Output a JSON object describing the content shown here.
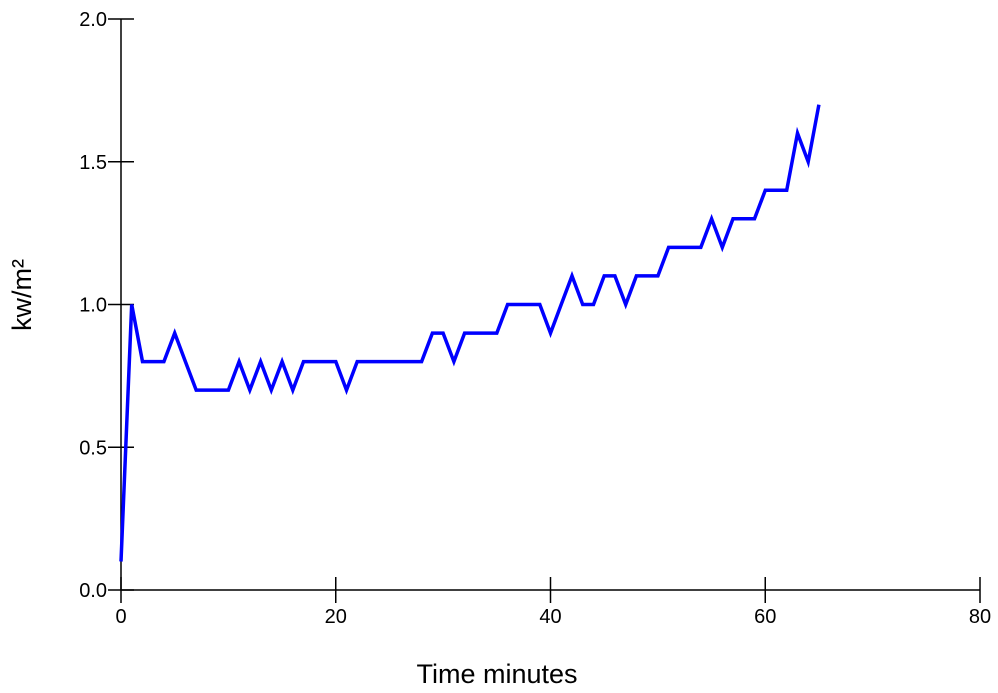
{
  "chart_data": {
    "type": "line",
    "title": "",
    "xlabel": "Time minutes",
    "ylabel": "kw/m²",
    "xlim": [
      0,
      80
    ],
    "ylim": [
      0,
      2
    ],
    "x_ticks": [
      0,
      20,
      40,
      60,
      80
    ],
    "x_tick_labels": [
      "0",
      "20",
      "40",
      "60",
      "80"
    ],
    "y_ticks": [
      0,
      0.5,
      1,
      1.5,
      2
    ],
    "y_tick_labels": [
      "0.0",
      "0.5",
      "1.0",
      "1.5",
      "2.0"
    ],
    "grid": false,
    "legend": "none",
    "series": [
      {
        "color": "#0000ff",
        "x": [
          0,
          1,
          2,
          3,
          4,
          5,
          6,
          7,
          8,
          9,
          10,
          11,
          12,
          13,
          14,
          15,
          16,
          17,
          18,
          19,
          20,
          21,
          22,
          23,
          24,
          25,
          26,
          27,
          28,
          29,
          30,
          31,
          32,
          33,
          34,
          35,
          36,
          37,
          38,
          39,
          40,
          41,
          42,
          43,
          44,
          45,
          46,
          47,
          48,
          49,
          50,
          51,
          52,
          53,
          54,
          55,
          56,
          57,
          58,
          59,
          60,
          61,
          62,
          63,
          64,
          65
        ],
        "y": [
          0.1,
          1.0,
          0.8,
          0.8,
          0.8,
          0.9,
          0.8,
          0.7,
          0.7,
          0.7,
          0.7,
          0.8,
          0.7,
          0.8,
          0.7,
          0.8,
          0.7,
          0.8,
          0.8,
          0.8,
          0.8,
          0.7,
          0.8,
          0.8,
          0.8,
          0.8,
          0.8,
          0.8,
          0.8,
          0.9,
          0.9,
          0.8,
          0.9,
          0.9,
          0.9,
          0.9,
          1.0,
          1.0,
          1.0,
          1.0,
          0.9,
          1.0,
          1.1,
          1.0,
          1.0,
          1.1,
          1.1,
          1.0,
          1.1,
          1.1,
          1.1,
          1.2,
          1.2,
          1.2,
          1.2,
          1.3,
          1.2,
          1.3,
          1.3,
          1.3,
          1.4,
          1.4,
          1.4,
          1.6,
          1.5,
          1.7
        ]
      }
    ]
  }
}
